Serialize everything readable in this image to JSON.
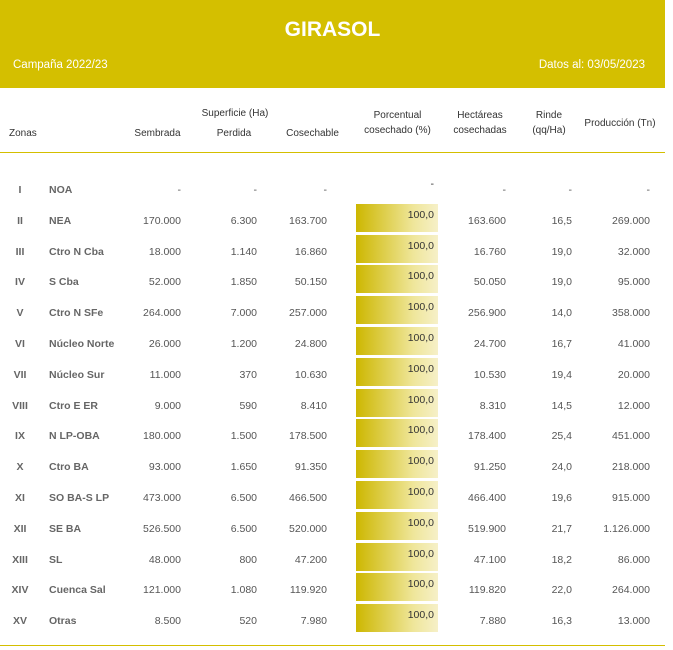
{
  "header": {
    "title": "GIRASOL",
    "campaign": "Campaña 2022/23",
    "date": "Datos al: 03/05/2023"
  },
  "table": {
    "group_header": "Superficie (Ha)",
    "columns": [
      "Zonas",
      "Sembrada",
      "Perdida",
      "Cosechable",
      "Porcentual cosechado (%)",
      "Hectáreas cosechadas",
      "Rinde (qq/Ha)",
      "Producción (Tn)"
    ],
    "rows": [
      [
        "I",
        "NOA",
        "-",
        "-",
        "-",
        "-",
        "-",
        "-",
        "-"
      ],
      [
        "II",
        "NEA",
        "170.000",
        "6.300",
        "163.700",
        "100,0",
        "163.600",
        "16,5",
        "269.000"
      ],
      [
        "III",
        "Ctro N Cba",
        "18.000",
        "1.140",
        "16.860",
        "100,0",
        "16.760",
        "19,0",
        "32.000"
      ],
      [
        "IV",
        "S Cba",
        "52.000",
        "1.850",
        "50.150",
        "100,0",
        "50.050",
        "19,0",
        "95.000"
      ],
      [
        "V",
        "Ctro N SFe",
        "264.000",
        "7.000",
        "257.000",
        "100,0",
        "256.900",
        "14,0",
        "358.000"
      ],
      [
        "VI",
        "Núcleo Norte",
        "26.000",
        "1.200",
        "24.800",
        "100,0",
        "24.700",
        "16,7",
        "41.000"
      ],
      [
        "VII",
        "Núcleo Sur",
        "11.000",
        "370",
        "10.630",
        "100,0",
        "10.530",
        "19,4",
        "20.000"
      ],
      [
        "VIII",
        "Ctro E ER",
        "9.000",
        "590",
        "8.410",
        "100,0",
        "8.310",
        "14,5",
        "12.000"
      ],
      [
        "IX",
        "N LP-OBA",
        "180.000",
        "1.500",
        "178.500",
        "100,0",
        "178.400",
        "25,4",
        "451.000"
      ],
      [
        "X",
        "Ctro BA",
        "93.000",
        "1.650",
        "91.350",
        "100,0",
        "91.250",
        "24,0",
        "218.000"
      ],
      [
        "XI",
        "SO BA-S LP",
        "473.000",
        "6.500",
        "466.500",
        "100,0",
        "466.400",
        "19,6",
        "915.000"
      ],
      [
        "XII",
        "SE BA",
        "526.500",
        "6.500",
        "520.000",
        "100,0",
        "519.900",
        "21,7",
        "1.126.000"
      ],
      [
        "XIII",
        "SL",
        "48.000",
        "800",
        "47.200",
        "100,0",
        "47.100",
        "18,2",
        "86.000"
      ],
      [
        "XIV",
        "Cuenca Sal",
        "121.000",
        "1.080",
        "119.920",
        "100,0",
        "119.820",
        "22,0",
        "264.000"
      ],
      [
        "XV",
        "Otras",
        "8.500",
        "520",
        "7.980",
        "100,0",
        "7.880",
        "16,3",
        "13.000"
      ]
    ]
  }
}
